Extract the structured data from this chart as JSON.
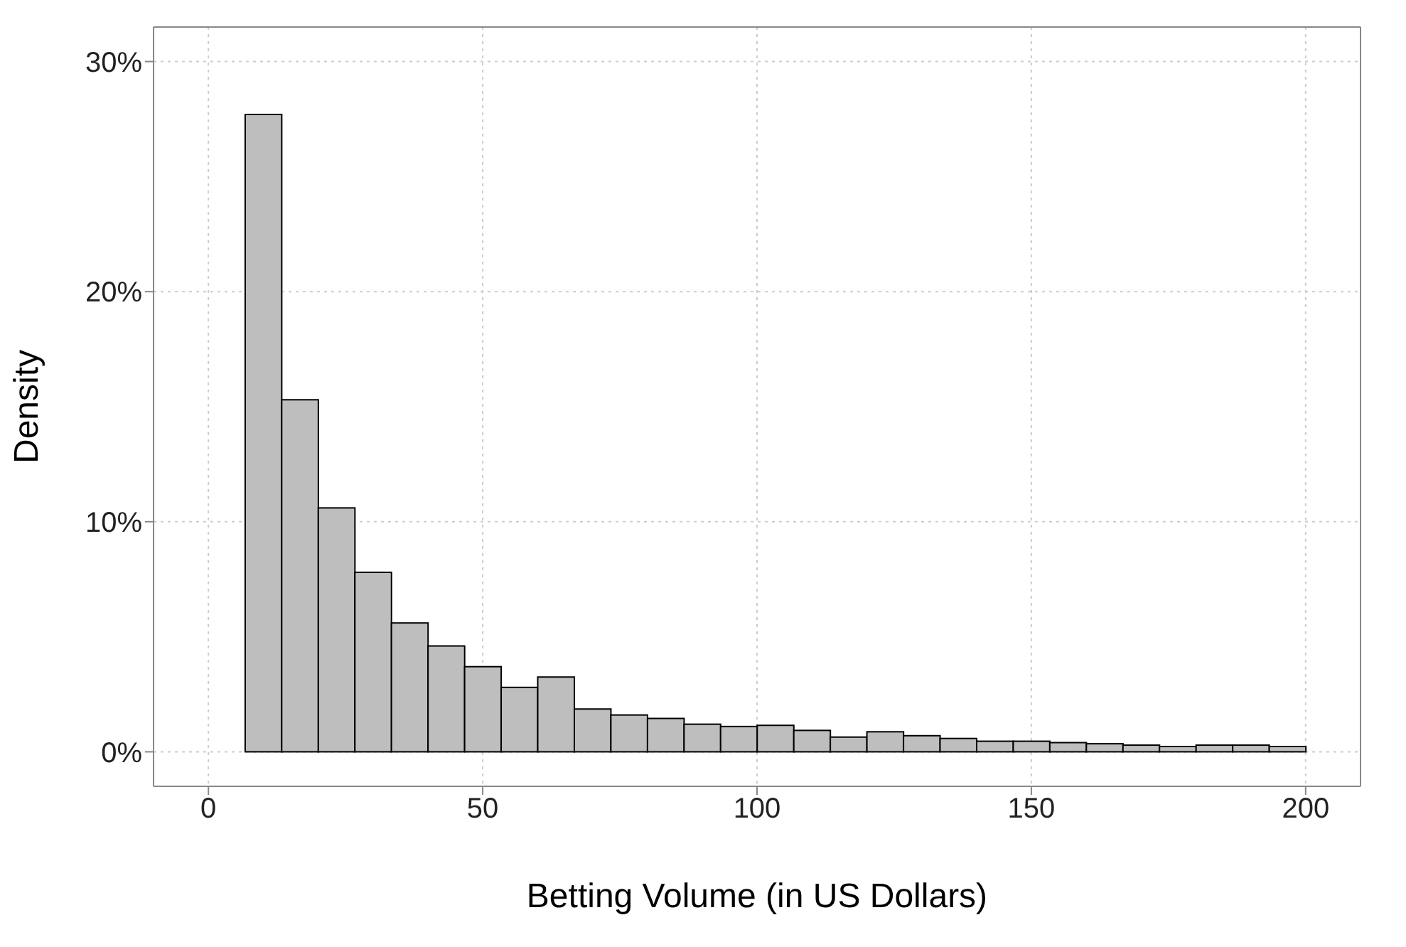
{
  "chart_data": {
    "type": "histogram",
    "xlabel": "Betting Volume (in US Dollars)",
    "ylabel": "Density",
    "bins": [
      6.67,
      13.33,
      20,
      26.67,
      33.33,
      40,
      46.67,
      53.33,
      60,
      66.67,
      73.33,
      80,
      86.67,
      93.33,
      100,
      106.67,
      113.33,
      120,
      126.67,
      133.33,
      140,
      146.67,
      153.33,
      160,
      166.67,
      173.33,
      180,
      186.67,
      193.33,
      200
    ],
    "values": [
      27.7,
      15.3,
      10.6,
      7.8,
      5.6,
      4.6,
      3.7,
      2.8,
      3.25,
      1.86,
      1.6,
      1.45,
      1.2,
      1.1,
      1.15,
      0.93,
      0.64,
      0.87,
      0.7,
      0.58,
      0.46,
      0.46,
      0.4,
      0.35,
      0.29,
      0.23,
      0.29,
      0.29,
      0.23
    ],
    "color": "#bebebe",
    "xlim": [
      -10,
      210
    ],
    "xticks": [
      0,
      50,
      100,
      150,
      200
    ],
    "ylim": [
      -1.5,
      31.5
    ],
    "yticks": [
      {
        "value": 0,
        "label": "0%"
      },
      {
        "value": 10,
        "label": "10%"
      },
      {
        "value": 20,
        "label": "20%"
      },
      {
        "value": 30,
        "label": "30%"
      }
    ],
    "grid": true
  }
}
